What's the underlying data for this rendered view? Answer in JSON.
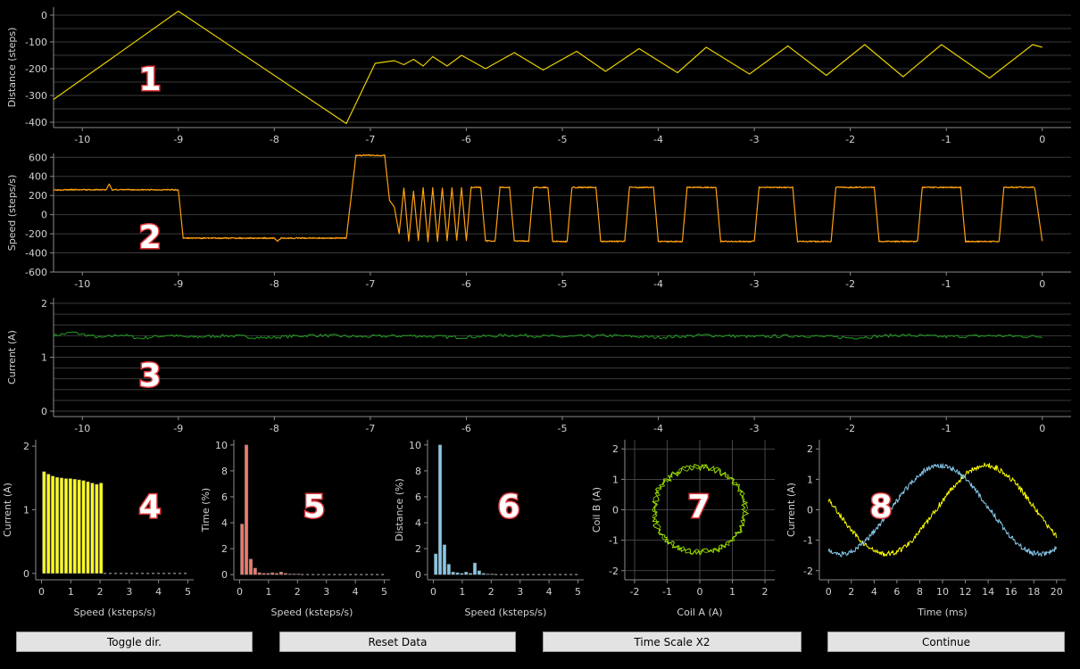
{
  "colors": {
    "background": "#000000",
    "axis": "#8a8a8a",
    "grid": "#3a3a3a",
    "text": "#d0d0d0",
    "distance": "#e8d000",
    "speed": "#ffa010",
    "current": "#1f9e1f",
    "hist_current": "#ffff1a",
    "hist_time": "#f07a6a",
    "hist_distance": "#86c8ea",
    "coil": "#9be000",
    "coil_a": "#ffff00",
    "coil_b": "#86c8ea",
    "badge_fill": "#ffffff",
    "badge_stroke": "#e0383b"
  },
  "buttons": {
    "toggle": "Toggle dir.",
    "reset": "Reset Data",
    "scale": "Time Scale X2",
    "continue": "Continue"
  },
  "chart_data": [
    {
      "id": "distance",
      "type": "line",
      "badge": "1",
      "ylabel": "Distance (steps)",
      "xlim": [
        -10.3,
        0.3
      ],
      "ylim": [
        -420,
        30
      ],
      "xticks": [
        -10,
        -9,
        -8,
        -7,
        -6,
        -5,
        -4,
        -3,
        -2,
        -1,
        0
      ],
      "yticks": [
        0,
        -100,
        -200,
        -300,
        -400
      ],
      "gridlines": [
        0,
        -50,
        -100,
        -150,
        -200,
        -250,
        -300,
        -350,
        -400
      ],
      "x": [
        -10.3,
        -9.0,
        -7.25,
        -6.95,
        -6.75,
        -6.65,
        -6.55,
        -6.45,
        -6.35,
        -6.2,
        -6.05,
        -5.8,
        -5.5,
        -5.2,
        -4.85,
        -4.55,
        -4.2,
        -3.8,
        -3.5,
        -3.05,
        -2.65,
        -2.25,
        -1.85,
        -1.45,
        -1.05,
        -0.55,
        -0.1,
        0.0
      ],
      "y": [
        -315,
        15,
        -405,
        -180,
        -170,
        -185,
        -165,
        -190,
        -155,
        -190,
        -150,
        -200,
        -140,
        -205,
        -135,
        -210,
        -125,
        -215,
        -120,
        -220,
        -115,
        -225,
        -110,
        -230,
        -110,
        -235,
        -110,
        -120
      ]
    },
    {
      "id": "speed",
      "type": "line",
      "badge": "2",
      "ylabel": "Speed (steps/s)",
      "xlim": [
        -10.3,
        0.3
      ],
      "ylim": [
        -600,
        640
      ],
      "xticks": [
        -10,
        -9,
        -8,
        -7,
        -6,
        -5,
        -4,
        -3,
        -2,
        -1,
        0
      ],
      "yticks": [
        600,
        400,
        200,
        0,
        -200,
        -400,
        -600
      ],
      "gridlines": [
        600,
        400,
        200,
        0,
        -200,
        -400,
        -600
      ],
      "x": [
        -10.3,
        -9.75,
        -9.72,
        -9.69,
        -9.0,
        -8.95,
        -8.0,
        -7.97,
        -7.93,
        -7.25,
        -7.15,
        -7.1,
        -6.85,
        -6.8,
        -6.75,
        -6.7,
        -6.65,
        -6.6,
        -6.55,
        -6.5,
        -6.45,
        -6.4,
        -6.35,
        -6.3,
        -6.25,
        -6.2,
        -6.15,
        -6.1,
        -6.05,
        -6.0,
        -5.95,
        -5.85,
        -5.8,
        -5.7,
        -5.65,
        -5.55,
        -5.5,
        -5.35,
        -5.3,
        -5.15,
        -5.1,
        -4.95,
        -4.9,
        -4.65,
        -4.6,
        -4.35,
        -4.3,
        -4.05,
        -4.0,
        -3.75,
        -3.7,
        -3.4,
        -3.35,
        -3.0,
        -2.95,
        -2.6,
        -2.55,
        -2.2,
        -2.15,
        -1.75,
        -1.7,
        -1.3,
        -1.25,
        -0.85,
        -0.8,
        -0.45,
        -0.4,
        -0.08,
        0.0
      ],
      "y": [
        260,
        260,
        320,
        260,
        260,
        -245,
        -245,
        -280,
        -245,
        -245,
        620,
        620,
        620,
        150,
        80,
        -200,
        280,
        -280,
        250,
        -270,
        280,
        -280,
        280,
        -280,
        280,
        -270,
        280,
        -270,
        280,
        -275,
        285,
        285,
        -275,
        -275,
        285,
        285,
        -275,
        -275,
        285,
        285,
        -280,
        -280,
        285,
        285,
        -280,
        -280,
        285,
        285,
        -280,
        -280,
        285,
        285,
        -280,
        -280,
        285,
        285,
        -280,
        -280,
        285,
        285,
        -280,
        -280,
        285,
        285,
        -280,
        -280,
        285,
        285,
        -280
      ]
    },
    {
      "id": "current",
      "type": "line",
      "badge": "3",
      "ylabel": "Current (A)",
      "xlim": [
        -10.3,
        0.3
      ],
      "ylim": [
        -0.1,
        2.1
      ],
      "xticks": [
        -10,
        -9,
        -8,
        -7,
        -6,
        -5,
        -4,
        -3,
        -2,
        -1,
        0
      ],
      "yticks": [
        2,
        1,
        0
      ],
      "gridlines": [
        2,
        1.8,
        1.6,
        1.4,
        1.2,
        1.0,
        0.8,
        0.6,
        0.4,
        0.2,
        0
      ],
      "level": 1.4,
      "x": [
        -10.3,
        -10.1,
        -9.8,
        -9.6,
        -9.4,
        -9.1,
        -8.9,
        -8.5,
        -8.1,
        -7.6,
        -7.1,
        -6.6,
        -6.1,
        -5.5,
        -5.0,
        -4.5,
        -4.0,
        -3.5,
        -3.0,
        -2.5,
        -2.0,
        -1.5,
        -1.0,
        -0.5,
        0.0
      ],
      "y": [
        1.4,
        1.46,
        1.36,
        1.42,
        1.35,
        1.41,
        1.37,
        1.4,
        1.36,
        1.41,
        1.38,
        1.4,
        1.37,
        1.41,
        1.38,
        1.4,
        1.37,
        1.41,
        1.38,
        1.4,
        1.36,
        1.41,
        1.38,
        1.4,
        1.38
      ]
    },
    {
      "id": "hist_current",
      "type": "bar",
      "badge": "4",
      "xlabel": "Speed (ksteps/s)",
      "ylabel": "Current (A)",
      "xlim": [
        -0.2,
        5.2
      ],
      "ylim": [
        -0.1,
        2.1
      ],
      "xticks": [
        0,
        1,
        2,
        3,
        4,
        5
      ],
      "yticks": [
        0,
        1,
        2
      ],
      "bar_width": 0.14,
      "x": [
        0.1,
        0.25,
        0.4,
        0.55,
        0.7,
        0.85,
        1.0,
        1.15,
        1.3,
        1.45,
        1.6,
        1.75,
        1.9,
        2.05
      ],
      "values": [
        1.6,
        1.56,
        1.53,
        1.51,
        1.5,
        1.49,
        1.49,
        1.48,
        1.47,
        1.46,
        1.44,
        1.42,
        1.4,
        1.42
      ],
      "baseline_dashed_to": 5.0
    },
    {
      "id": "hist_time",
      "type": "bar",
      "badge": "5",
      "xlabel": "Speed (ksteps/s)",
      "ylabel": "Time (%)",
      "xlim": [
        -0.2,
        5.2
      ],
      "ylim": [
        -0.4,
        10.4
      ],
      "xticks": [
        0,
        1,
        2,
        3,
        4,
        5
      ],
      "yticks": [
        0,
        2,
        4,
        6,
        8,
        10
      ],
      "bar_width": 0.14,
      "x": [
        0.1,
        0.25,
        0.4,
        0.55,
        0.7,
        0.85,
        1.0,
        1.15,
        1.3,
        1.45,
        1.6,
        1.75,
        1.9,
        2.05
      ],
      "values": [
        3.9,
        10.0,
        1.2,
        0.5,
        0.15,
        0.1,
        0.1,
        0.15,
        0.1,
        0.2,
        0.1,
        0.05,
        0.05,
        0.05
      ],
      "baseline_dashed_to": 5.0
    },
    {
      "id": "hist_distance",
      "type": "bar",
      "badge": "6",
      "xlabel": "Speed (ksteps/s)",
      "ylabel": "Distance (%)",
      "xlim": [
        -0.2,
        5.2
      ],
      "ylim": [
        -0.4,
        10.4
      ],
      "xticks": [
        0,
        1,
        2,
        3,
        4,
        5
      ],
      "yticks": [
        0,
        2,
        4,
        6,
        8,
        10
      ],
      "bar_width": 0.14,
      "x": [
        0.1,
        0.25,
        0.4,
        0.55,
        0.7,
        0.85,
        1.0,
        1.15,
        1.3,
        1.45,
        1.6,
        1.75,
        1.9,
        2.05
      ],
      "values": [
        1.6,
        10.0,
        2.3,
        0.8,
        0.2,
        0.15,
        0.1,
        0.2,
        0.1,
        0.9,
        0.3,
        0.1,
        0.05,
        0.05
      ],
      "baseline_dashed_to": 5.0
    },
    {
      "id": "coil",
      "type": "scatter",
      "badge": "7",
      "xlabel": "Coil A (A)",
      "ylabel": "Coil B (A)",
      "xlim": [
        -2.3,
        2.3
      ],
      "ylim": [
        -2.3,
        2.3
      ],
      "xticks": [
        -2,
        -1,
        0,
        1,
        2
      ],
      "yticks": [
        2,
        1,
        0,
        -1,
        -2
      ],
      "gridlines": [
        -2,
        -1,
        0,
        1,
        2
      ],
      "radius": 1.4
    },
    {
      "id": "coils_time",
      "type": "line",
      "badge": "8",
      "xlabel": "Time (ms)",
      "ylabel": "Current (A)",
      "xlim": [
        -0.8,
        20.8
      ],
      "ylim": [
        -2.3,
        2.3
      ],
      "xticks": [
        0,
        2,
        4,
        6,
        8,
        10,
        12,
        14,
        16,
        18,
        20
      ],
      "yticks": [
        2,
        1,
        0,
        -1,
        -2
      ],
      "series": [
        {
          "color_key": "coil_a",
          "amplitude": 1.45,
          "period_ms": 17.5,
          "peak_ms": 13.8
        },
        {
          "color_key": "coil_b",
          "amplitude": 1.45,
          "period_ms": 17.5,
          "peak_ms": 9.8
        }
      ]
    }
  ]
}
